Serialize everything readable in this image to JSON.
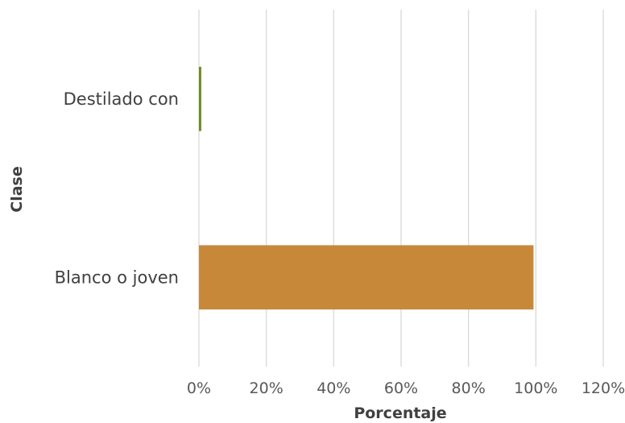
{
  "chart_data": {
    "type": "bar",
    "orientation": "horizontal",
    "categories": [
      "Destilado con",
      "Blanco o joven"
    ],
    "values": [
      0.7,
      99.3
    ],
    "bar_colors": [
      "#6b8e23",
      "#c8883a"
    ],
    "xlabel": "Porcentaje",
    "ylabel": "Clase",
    "xlim": [
      0,
      120
    ],
    "xticks": [
      "0%",
      "20%",
      "40%",
      "60%",
      "80%",
      "100%",
      "120%"
    ],
    "grid": "vertical",
    "legend": "none"
  }
}
